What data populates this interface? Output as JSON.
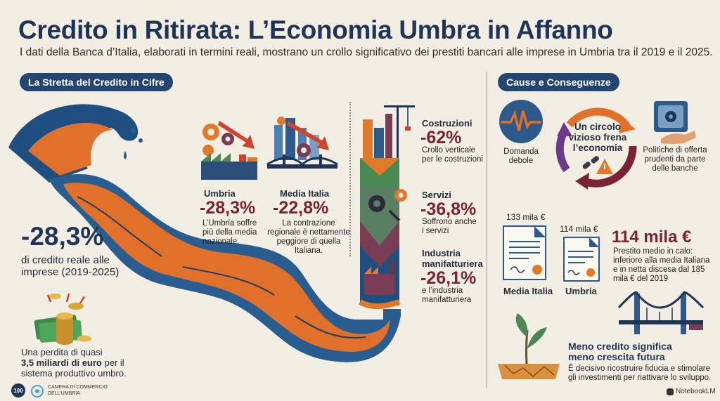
{
  "header": {
    "title": "Credito in Ritirata: L’Economia Umbra in Affanno",
    "subtitle": "I dati della Banca d’Italia, elaborati in termini reali, mostrano un crollo significativo dei prestiti bancari alle imprese in Umbria tra il 2019 e il 2025."
  },
  "left_section": {
    "pill": "La Stretta del Credito in Cifre",
    "headline_value": "-28,3%",
    "headline_desc_line1": "di credito reale alle",
    "headline_desc_line2": "imprese (2019-2025)",
    "loss_line1": "Una perdita di quasi",
    "loss_line2_bold": "3,5 miliardi di euro",
    "loss_line2_rest": " per il",
    "loss_line3": "sistema produttivo umbro.",
    "umbria": {
      "label": "Umbria",
      "value": "-28,3%",
      "desc_line1": "L’Umbria soffre",
      "desc_line2": "più della media",
      "desc_line3": "nazionale."
    },
    "italia": {
      "label": "Media Italia",
      "value": "-22,8%",
      "desc_line1": "La contrazione",
      "desc_line2": "regionale è nettamente",
      "desc_line3": "peggiore di quella",
      "desc_line4": "Italiana."
    },
    "sectors": [
      {
        "label": "Costruzioni",
        "value": "-62%",
        "desc_line1": "Crollo verticale",
        "desc_line2": "per le costruzioni"
      },
      {
        "label": "Servizi",
        "value": "-36,8%",
        "desc_line1": "Soffrono anche",
        "desc_line2": "i servizi"
      },
      {
        "label_line1": "Industria",
        "label_line2": "manifatturiera",
        "value": "-26,1%",
        "desc_line1": "e l’industria",
        "desc_line2": "manifatturiera"
      }
    ]
  },
  "right_section": {
    "pill": "Cause e Conseguenze",
    "cycle_line1": "Un circolo",
    "cycle_line2": "vizioso frena",
    "cycle_line3": "l’economia",
    "demand_line1": "Domanda",
    "demand_line2": "debole",
    "policy_line1": "Politiche di offerta",
    "policy_line2": "prudenti da parte",
    "policy_line3": "delle banche",
    "doc_italia_amount": "133 mila €",
    "doc_italia_label": "Media Italia",
    "doc_umbria_amount": "114 mila €",
    "doc_umbria_label": "Umbria",
    "loan_value": "114 mila €",
    "loan_desc_line1": "Prestito medio in calo:",
    "loan_desc_line2": "inferiore alla media Italiana",
    "loan_desc_line3": "e in netta discesa dal 185",
    "loan_desc_line4": "mila € del 2019",
    "future_title_line1": "Meno credito significa",
    "future_title_line2": "meno crescita futura",
    "future_desc_line1": "È decisivo ricostruire fiducia e stimolare",
    "future_desc_line2": "gli investimenti per riattivare lo sviluppo."
  },
  "footer": {
    "badge": "100",
    "chamber_line1": "CAMERA DI COMMERCIO",
    "chamber_line2": "DELL’UMBRIA",
    "brand": "NotebookLM"
  },
  "colors": {
    "navy": "#1e3557",
    "maroon": "#7a2338",
    "orange": "#e0702a",
    "blue": "#2d5a8a",
    "background": "#f3eee3"
  }
}
